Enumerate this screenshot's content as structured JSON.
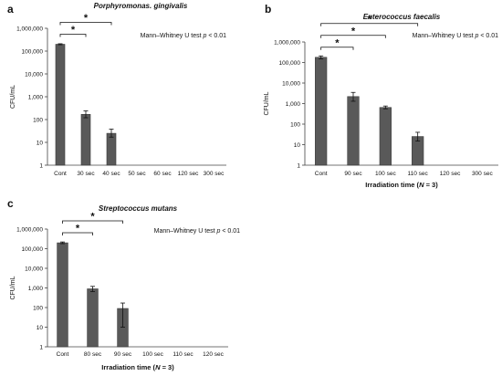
{
  "chart_data": [
    {
      "type": "bar",
      "panel": "a",
      "title": "Porphyromonas. gingivalis",
      "xlabel": "",
      "ylabel": "CFU/mL",
      "yscale": "log",
      "ylim": [
        1,
        1000000
      ],
      "yticks": [
        "1",
        "10",
        "100",
        "1,000",
        "10,000",
        "100,000",
        "1,000,000"
      ],
      "categories": [
        "Cont",
        "30 sec",
        "40 sec",
        "50 sec",
        "60 sec",
        "120 sec",
        "300 sec"
      ],
      "values": [
        200000,
        170,
        25,
        null,
        null,
        null,
        null
      ],
      "error": [
        [
          190000,
          210000
        ],
        [
          120,
          240
        ],
        [
          17,
          38
        ],
        null,
        null,
        null,
        null
      ],
      "annotation": "Mann–Whitney U test p < 0.01",
      "significance": [
        {
          "from": 0,
          "to": 1,
          "label": "*"
        },
        {
          "from": 0,
          "to": 2,
          "label": "*"
        }
      ]
    },
    {
      "type": "bar",
      "panel": "b",
      "title": "Enterococcus faecalis",
      "xlabel": "Irradiation time (N = 3)",
      "ylabel": "CFU/mL",
      "yscale": "log",
      "ylim": [
        1,
        1000000
      ],
      "yticks": [
        "1",
        "10",
        "100",
        "1,000",
        "10,000",
        "100,000",
        "1,000,000"
      ],
      "categories": [
        "Cont",
        "90 sec",
        "100 sec",
        "110 sec",
        "120 sec",
        "300 sec"
      ],
      "values": [
        180000,
        2200,
        650,
        25,
        null,
        null
      ],
      "error": [
        [
          150000,
          210000
        ],
        [
          1300,
          3500
        ],
        [
          560,
          760
        ],
        [
          15,
          40
        ],
        null,
        null
      ],
      "annotation": "Mann–Whitney U test p < 0.01",
      "significance": [
        {
          "from": 0,
          "to": 1,
          "label": "*"
        },
        {
          "from": 0,
          "to": 2,
          "label": "*"
        },
        {
          "from": 0,
          "to": 3,
          "label": "*"
        }
      ]
    },
    {
      "type": "bar",
      "panel": "c",
      "title": "Streptococcus mutans",
      "xlabel": "Irradiation time (N = 3)",
      "ylabel": "CFU/mL",
      "yscale": "log",
      "ylim": [
        1,
        1000000
      ],
      "yticks": [
        "1",
        "10",
        "100",
        "1,000",
        "10,000",
        "100,000",
        "1,000,000"
      ],
      "categories": [
        "Cont",
        "80 sec",
        "90 sec",
        "100 sec",
        "110 sec",
        "120 sec"
      ],
      "values": [
        200000,
        900,
        90,
        null,
        null,
        null
      ],
      "error": [
        [
          180000,
          220000
        ],
        [
          650,
          1200
        ],
        [
          10,
          170
        ],
        null,
        null,
        null
      ],
      "annotation": "Mann–Whitney U test p < 0.01",
      "significance": [
        {
          "from": 0,
          "to": 1,
          "label": "*"
        },
        {
          "from": 0,
          "to": 2,
          "label": "*"
        }
      ]
    }
  ]
}
